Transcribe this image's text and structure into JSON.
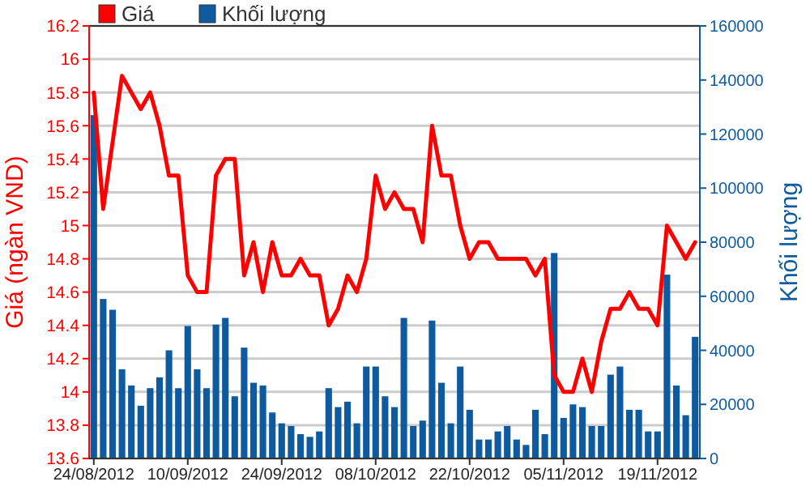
{
  "chart_data": {
    "type": "bar",
    "ylabel": "Giá (ngàn VND)",
    "y2label": "Khối lượng",
    "categories": [
      "24/08/2012",
      null,
      null,
      null,
      null,
      null,
      null,
      null,
      null,
      null,
      "10/09/2012",
      null,
      null,
      null,
      null,
      null,
      null,
      null,
      null,
      null,
      "24/09/2012",
      null,
      null,
      null,
      null,
      null,
      null,
      null,
      null,
      null,
      "08/10/2012",
      null,
      null,
      null,
      null,
      null,
      null,
      null,
      null,
      null,
      "22/10/2012",
      null,
      null,
      null,
      null,
      null,
      null,
      null,
      null,
      null,
      "05/11/2012",
      null,
      null,
      null,
      null,
      null,
      null,
      null,
      null,
      null,
      "19/11/2012",
      null,
      null,
      null,
      null
    ],
    "series": [
      {
        "name": "Giá",
        "type": "line",
        "color": "#ff0000",
        "values": [
          15.8,
          15.1,
          15.5,
          15.9,
          15.8,
          15.7,
          15.8,
          15.6,
          15.3,
          15.3,
          14.7,
          14.6,
          14.6,
          15.3,
          15.4,
          15.4,
          14.7,
          14.9,
          14.6,
          14.9,
          14.7,
          14.7,
          14.8,
          14.7,
          14.7,
          14.4,
          14.5,
          14.7,
          14.6,
          14.8,
          15.3,
          15.1,
          15.2,
          15.1,
          15.1,
          14.9,
          15.6,
          15.3,
          15.3,
          15.0,
          14.8,
          14.9,
          14.9,
          14.8,
          14.8,
          14.8,
          14.8,
          14.7,
          14.8,
          14.1,
          14.0,
          14.0,
          14.2,
          14.0,
          14.3,
          14.5,
          14.5,
          14.6,
          14.5,
          14.5,
          14.4,
          15.0,
          14.9,
          14.8,
          14.9
        ]
      },
      {
        "name": "Khối lượng",
        "axis": "y2",
        "color": "#0d5a9e",
        "values": [
          127000,
          59000,
          55000,
          33000,
          27000,
          19500,
          26000,
          30000,
          40000,
          26000,
          49000,
          33000,
          26000,
          49500,
          52000,
          23000,
          41000,
          28000,
          27000,
          17000,
          13000,
          12000,
          9000,
          8000,
          10000,
          26000,
          19000,
          21000,
          13000,
          34000,
          34000,
          23000,
          19000,
          52000,
          12000,
          14000,
          51000,
          28000,
          13000,
          34000,
          18000,
          7000,
          7000,
          10000,
          12000,
          7000,
          5000,
          18000,
          9000,
          76000,
          15000,
          20000,
          19000,
          12000,
          12000,
          31000,
          34000,
          18000,
          18000,
          10000,
          10000,
          68000,
          27000,
          16000,
          45000
        ]
      }
    ],
    "ylim": [
      13.6,
      16.2
    ],
    "yticks": [
      {
        "value": 13.6,
        "label": "13.6"
      },
      {
        "value": 13.8,
        "label": "13.8"
      },
      {
        "value": 14,
        "label": "14"
      },
      {
        "value": 14.2,
        "label": "14.2"
      },
      {
        "value": 14.4,
        "label": "14.4"
      },
      {
        "value": 14.6,
        "label": "14.6"
      },
      {
        "value": 14.8,
        "label": "14.8"
      },
      {
        "value": 15,
        "label": "15"
      },
      {
        "value": 15.2,
        "label": "15.2"
      },
      {
        "value": 15.4,
        "label": "15.4"
      },
      {
        "value": 15.6,
        "label": "15.6"
      },
      {
        "value": 15.8,
        "label": "15.8"
      },
      {
        "value": 16,
        "label": "16"
      },
      {
        "value": 16.2,
        "label": "16.2"
      }
    ],
    "y2lim": [
      0,
      160000
    ],
    "y2ticks": [
      0,
      20000,
      40000,
      60000,
      80000,
      100000,
      120000,
      140000,
      160000
    ],
    "grid": "y",
    "legend": "top left"
  }
}
